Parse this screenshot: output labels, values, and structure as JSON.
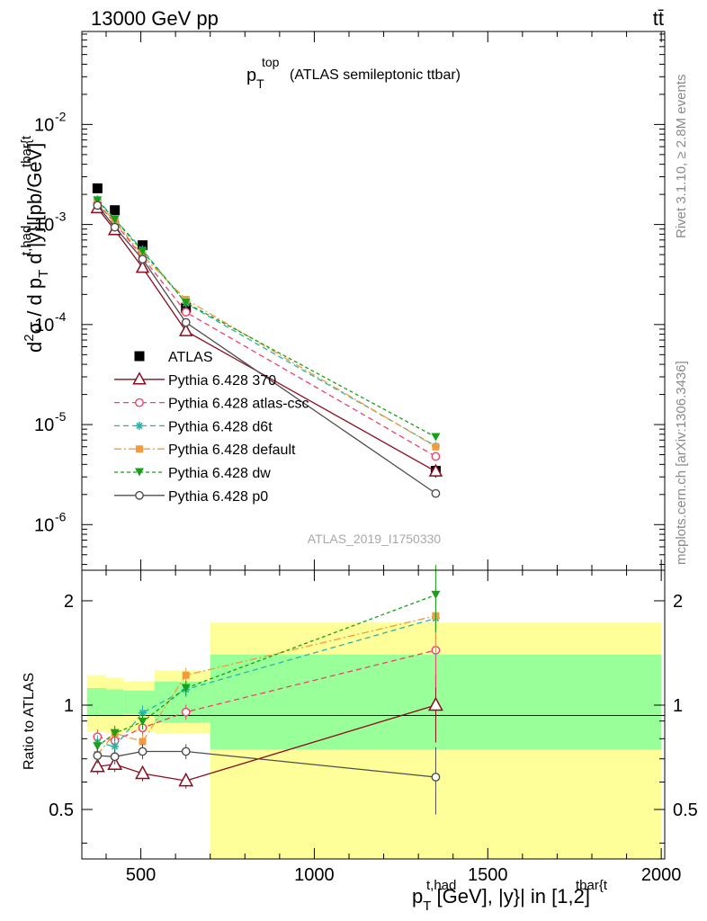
{
  "header": {
    "left": "13000 GeV pp",
    "right": "tt̄"
  },
  "side_labels": {
    "rivet": "Rivet 3.1.10, ≥ 2.8M events",
    "mcplots": "mcplots.cern.ch [arXiv:1306.3436]"
  },
  "chart_data": [
    {
      "type": "line",
      "title": "p_T^top (ATLAS semileptonic ttbar)",
      "title_main": "p",
      "title_sup": "top",
      "title_sub": "T",
      "title_rest": "(ATLAS semileptonic ttbar)",
      "ylabel_parts": {
        "d2": "d",
        "d2_sup": "2",
        "sigma": "σ / d p",
        "pt_sup": "t,had",
        "pt_sub": "T",
        "mid": " d |y",
        "y_sup": "tbar{t",
        "end": "}|[pb/GeV]"
      },
      "yscale": "log",
      "ylim": [
        3.5e-07,
        0.085
      ],
      "xlim": [
        330,
        2010
      ],
      "y_ticks": [
        {
          "value": 1e-06,
          "base": "10",
          "exp": "-6"
        },
        {
          "value": 1e-05,
          "base": "10",
          "exp": "-5"
        },
        {
          "value": 0.0001,
          "base": "10",
          "exp": "-4"
        },
        {
          "value": 0.001,
          "base": "10",
          "exp": "-3"
        },
        {
          "value": 0.01,
          "base": "10",
          "exp": "-2"
        }
      ],
      "watermark": "ATLAS_2019_I1750330",
      "x": [
        375,
        425,
        505,
        630,
        1350
      ],
      "series": [
        {
          "name": "ATLAS",
          "marker": "filled-square",
          "color": "#000000",
          "dash": "",
          "values": [
            0.0023,
            0.00139,
            0.00062,
            0.000147,
            3.45e-06
          ],
          "errors": [
            0.00015,
            9e-05,
            4e-05,
            1e-05,
            5e-07
          ]
        },
        {
          "name": "Pythia 6.428 370",
          "marker": "open-triangle",
          "color": "#8b0b1e",
          "dash": "",
          "values": [
            0.00146,
            0.00088,
            0.00037,
            8.6e-05,
            3.4e-06
          ]
        },
        {
          "name": "Pythia 6.428 atlas-csc",
          "marker": "open-circle",
          "color": "#f0406a",
          "dash": "6,4",
          "values": [
            0.00163,
            0.00104,
            0.00047,
            0.000133,
            4.8e-06
          ]
        },
        {
          "name": "Pythia 6.428 d6t",
          "marker": "star",
          "color": "#28b5a8",
          "dash": "6,4",
          "values": [
            0.00178,
            0.00113,
            0.00056,
            0.000163,
            6.1e-06
          ]
        },
        {
          "name": "Pythia 6.428 default",
          "marker": "filled-square-small",
          "color": "#f59a3c",
          "dash": "8,3,2,3",
          "values": [
            0.00164,
            0.00108,
            0.00049,
            0.000178,
            6e-06
          ]
        },
        {
          "name": "Pythia 6.428 dw",
          "marker": "filled-triangle-down",
          "color": "#18a018",
          "dash": "4,3",
          "values": [
            0.00174,
            0.00112,
            0.00054,
            0.000165,
            7.5e-06
          ]
        },
        {
          "name": "Pythia 6.428 p0",
          "marker": "open-circle",
          "color": "#4d4d4d",
          "dash": "",
          "values": [
            0.00155,
            0.00094,
            0.00045,
            0.000105,
            2.05e-06
          ]
        }
      ],
      "legend_position": "lower-left"
    },
    {
      "type": "line",
      "ylabel": "Ratio to ATLAS",
      "xlabel_parts": {
        "p": "p",
        "p_sup": "t,had",
        "p_sub": "T",
        "mid": " [GeV], |y",
        "y_sup": "tbar{t",
        "end": "}| in [1,2]"
      },
      "yscale": "log",
      "ylim": [
        0.36,
        2.45
      ],
      "xlim": [
        330,
        2010
      ],
      "x_ticks": [
        500,
        1000,
        1500,
        2000
      ],
      "y_ticks": [
        0.5,
        1,
        2
      ],
      "reference_line": 1,
      "bands": [
        {
          "x0": 345,
          "x1": 400,
          "inner": [
            0.93,
            1.12
          ],
          "outer": [
            0.84,
            1.22
          ]
        },
        {
          "x0": 400,
          "x1": 450,
          "inner": [
            0.93,
            1.11
          ],
          "outer": [
            0.83,
            1.2
          ]
        },
        {
          "x0": 450,
          "x1": 540,
          "inner": [
            0.94,
            1.1
          ],
          "outer": [
            0.84,
            1.17
          ]
        },
        {
          "x0": 540,
          "x1": 700,
          "inner": [
            0.89,
            1.17
          ],
          "outer": [
            0.83,
            1.26
          ]
        },
        {
          "x0": 700,
          "x1": 2000,
          "inner": [
            0.745,
            1.4
          ],
          "outer": [
            0.36,
            1.73
          ]
        }
      ],
      "x": [
        375,
        425,
        505,
        630,
        1350
      ],
      "series": [
        {
          "name": "Pythia 6.428 370",
          "values": [
            0.665,
            0.675,
            0.635,
            0.605,
            1.0
          ]
        },
        {
          "name": "Pythia 6.428 atlas-csc",
          "values": [
            0.81,
            0.79,
            0.86,
            0.955,
            1.44
          ]
        },
        {
          "name": "Pythia 6.428 d6t",
          "values": [
            0.78,
            0.76,
            0.95,
            1.11,
            1.78
          ]
        },
        {
          "name": "Pythia 6.428 default",
          "values": [
            0.72,
            0.83,
            0.785,
            1.22,
            1.81
          ]
        },
        {
          "name": "Pythia 6.428 dw",
          "values": [
            0.76,
            0.83,
            0.895,
            1.12,
            2.08
          ]
        },
        {
          "name": "Pythia 6.428 p0",
          "values": [
            0.715,
            0.71,
            0.735,
            0.735,
            0.62
          ]
        }
      ]
    }
  ]
}
